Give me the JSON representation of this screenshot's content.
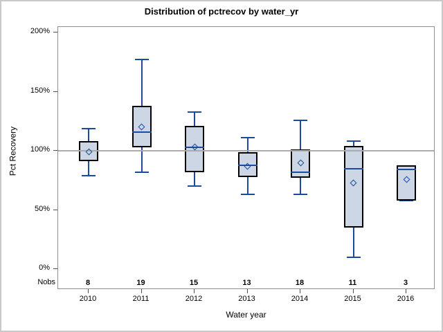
{
  "title": "Distribution of pctrecov by water_yr",
  "y_axis": {
    "label": "Pct Recovery",
    "tick_suffix": "%",
    "min": 0,
    "max": 200,
    "step": 50
  },
  "x_axis": {
    "label": "Water year"
  },
  "nobs_label": "Nobs",
  "colors": {
    "box_fill": "#ccd6e5",
    "box_border": "#000000",
    "line_blue": "#1a4a9e",
    "reference_gray": "#ababab",
    "frame_gray": "#8e8e8e"
  },
  "chart_data": {
    "type": "boxplot",
    "title": "Distribution of pctrecov by water_yr",
    "xlabel": "Water year",
    "ylabel": "Pct Recovery",
    "ylim": [
      0,
      200
    ],
    "y_tick_labels": [
      "0%",
      "50%",
      "100%",
      "150%",
      "200%"
    ],
    "reference_line": 100,
    "grid": false,
    "categories": [
      "2010",
      "2011",
      "2012",
      "2013",
      "2014",
      "2015",
      "2016"
    ],
    "nobs": [
      8,
      19,
      15,
      13,
      18,
      11,
      3
    ],
    "series": [
      {
        "year": "2010",
        "nobs": 8,
        "min": 79,
        "q1": 91,
        "median": 100,
        "q3": 108,
        "max": 119,
        "mean": 99
      },
      {
        "year": "2011",
        "nobs": 19,
        "min": 82,
        "q1": 103,
        "median": 116,
        "q3": 138,
        "max": 177,
        "mean": 120
      },
      {
        "year": "2012",
        "nobs": 15,
        "min": 70,
        "q1": 82,
        "median": 103,
        "q3": 121,
        "max": 133,
        "mean": 103
      },
      {
        "year": "2013",
        "nobs": 13,
        "min": 63,
        "q1": 78,
        "median": 88,
        "q3": 99,
        "max": 111,
        "mean": 87
      },
      {
        "year": "2014",
        "nobs": 18,
        "min": 63,
        "q1": 77,
        "median": 82,
        "q3": 101,
        "max": 126,
        "mean": 90
      },
      {
        "year": "2015",
        "nobs": 11,
        "min": 10,
        "q1": 35,
        "median": 85,
        "q3": 104,
        "max": 108,
        "mean": 73
      },
      {
        "year": "2016",
        "nobs": 3,
        "min": 58,
        "q1": 58,
        "median": 84,
        "q3": 88,
        "max": 88,
        "mean": 76
      }
    ]
  }
}
